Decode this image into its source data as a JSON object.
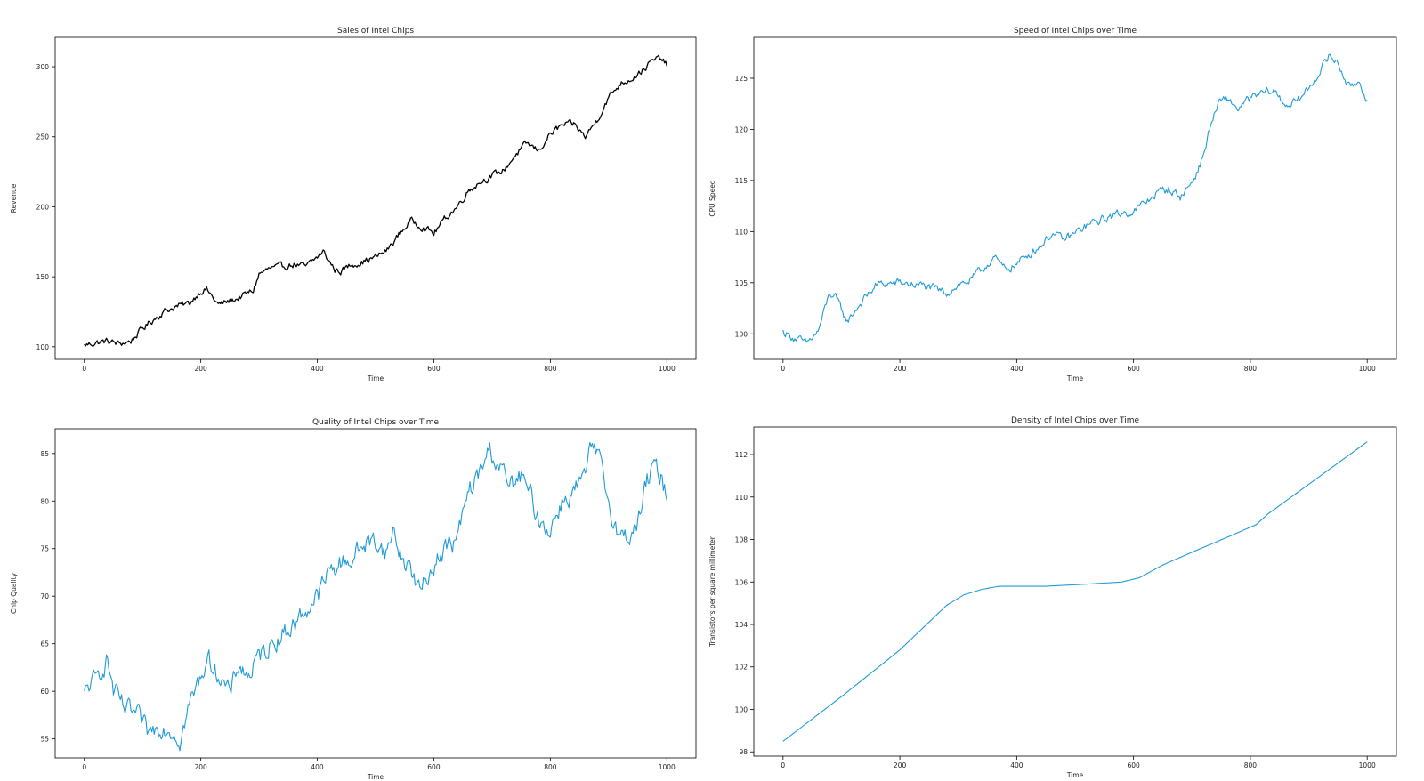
{
  "figure": {
    "background": "#ffffff"
  },
  "chart_data": [
    {
      "type": "line",
      "title": "Sales of Intel Chips",
      "xlabel": "Time",
      "ylabel": "Revenue",
      "xlim": [
        -50,
        1050
      ],
      "ylim": [
        91,
        321
      ],
      "xticks": [
        0,
        200,
        400,
        600,
        800,
        1000
      ],
      "yticks": [
        100,
        150,
        200,
        250,
        300
      ],
      "grid": false,
      "legend": "none",
      "noise": 2.0,
      "series": [
        {
          "color": "#000000",
          "keypoints": [
            [
              0,
              101
            ],
            [
              20,
              103
            ],
            [
              40,
              104
            ],
            [
              60,
              102
            ],
            [
              80,
              104
            ],
            [
              100,
              113
            ],
            [
              120,
              120
            ],
            [
              140,
              126
            ],
            [
              160,
              129
            ],
            [
              180,
              131
            ],
            [
              200,
              140
            ],
            [
              210,
              141
            ],
            [
              230,
              130
            ],
            [
              260,
              134
            ],
            [
              290,
              140
            ],
            [
              300,
              152
            ],
            [
              320,
              156
            ],
            [
              340,
              157
            ],
            [
              360,
              159
            ],
            [
              380,
              157
            ],
            [
              400,
              164
            ],
            [
              410,
              168
            ],
            [
              430,
              155
            ],
            [
              440,
              154
            ],
            [
              460,
              159
            ],
            [
              480,
              161
            ],
            [
              500,
              164
            ],
            [
              520,
              169
            ],
            [
              540,
              180
            ],
            [
              560,
              190
            ],
            [
              580,
              186
            ],
            [
              600,
              181
            ],
            [
              620,
              192
            ],
            [
              640,
              200
            ],
            [
              660,
              212
            ],
            [
              680,
              218
            ],
            [
              700,
              222
            ],
            [
              720,
              226
            ],
            [
              740,
              237
            ],
            [
              760,
              245
            ],
            [
              780,
              240
            ],
            [
              800,
              252
            ],
            [
              820,
              258
            ],
            [
              840,
              259
            ],
            [
              860,
              250
            ],
            [
              880,
              262
            ],
            [
              900,
              278
            ],
            [
              920,
              288
            ],
            [
              940,
              292
            ],
            [
              960,
              298
            ],
            [
              975,
              304
            ],
            [
              990,
              306
            ],
            [
              1000,
              301
            ]
          ]
        }
      ]
    },
    {
      "type": "line",
      "title": "Speed of Intel Chips over Time",
      "xlabel": "Time",
      "ylabel": "CPU Speed",
      "xlim": [
        -50,
        1050
      ],
      "ylim": [
        97.5,
        129
      ],
      "xticks": [
        0,
        200,
        400,
        600,
        800,
        1000
      ],
      "yticks": [
        100,
        105,
        110,
        115,
        120,
        125
      ],
      "grid": false,
      "legend": "none",
      "noise": 0.35,
      "series": [
        {
          "color": "#1f9bd7",
          "keypoints": [
            [
              0,
              100.2
            ],
            [
              20,
              99.6
            ],
            [
              40,
              99.0
            ],
            [
              60,
              100.2
            ],
            [
              80,
              104.0
            ],
            [
              90,
              103.5
            ],
            [
              110,
              101.2
            ],
            [
              130,
              102.8
            ],
            [
              160,
              104.8
            ],
            [
              200,
              105.0
            ],
            [
              240,
              104.7
            ],
            [
              280,
              104.0
            ],
            [
              300,
              104.8
            ],
            [
              320,
              105.2
            ],
            [
              340,
              106.2
            ],
            [
              360,
              107.5
            ],
            [
              380,
              106.3
            ],
            [
              400,
              106.8
            ],
            [
              420,
              107.8
            ],
            [
              440,
              108.6
            ],
            [
              460,
              109.8
            ],
            [
              480,
              109.2
            ],
            [
              500,
              109.8
            ],
            [
              520,
              110.6
            ],
            [
              540,
              111.0
            ],
            [
              560,
              111.5
            ],
            [
              580,
              111.8
            ],
            [
              600,
              112.0
            ],
            [
              620,
              112.8
            ],
            [
              640,
              113.8
            ],
            [
              660,
              114.2
            ],
            [
              680,
              113.4
            ],
            [
              700,
              114.8
            ],
            [
              710,
              116.0
            ],
            [
              720,
              117.5
            ],
            [
              730,
              120.0
            ],
            [
              745,
              122.5
            ],
            [
              760,
              123.0
            ],
            [
              780,
              122.0
            ],
            [
              800,
              123.0
            ],
            [
              820,
              123.5
            ],
            [
              840,
              123.8
            ],
            [
              860,
              122.4
            ],
            [
              880,
              122.7
            ],
            [
              900,
              124.0
            ],
            [
              920,
              125.8
            ],
            [
              935,
              127.2
            ],
            [
              950,
              126.5
            ],
            [
              970,
              124.0
            ],
            [
              985,
              124.8
            ],
            [
              1000,
              123.0
            ]
          ]
        }
      ]
    },
    {
      "type": "line",
      "title": "Quality of Intel Chips over Time",
      "xlabel": "Time",
      "ylabel": "Chip Quality",
      "xlim": [
        -50,
        1050
      ],
      "ylim": [
        53,
        87.6
      ],
      "xticks": [
        0,
        200,
        400,
        600,
        800,
        1000
      ],
      "yticks": [
        55,
        60,
        65,
        70,
        75,
        80,
        85
      ],
      "grid": false,
      "legend": "none",
      "noise": 0.9,
      "series": [
        {
          "color": "#1f9bd7",
          "keypoints": [
            [
              0,
              59.5
            ],
            [
              10,
              60.8
            ],
            [
              20,
              61.0
            ],
            [
              30,
              62.5
            ],
            [
              40,
              63.3
            ],
            [
              50,
              60.0
            ],
            [
              70,
              58.0
            ],
            [
              90,
              57.5
            ],
            [
              110,
              55.5
            ],
            [
              130,
              56.5
            ],
            [
              150,
              56.0
            ],
            [
              165,
              55.0
            ],
            [
              180,
              58.5
            ],
            [
              200,
              61.5
            ],
            [
              210,
              63.5
            ],
            [
              230,
              62.0
            ],
            [
              250,
              59.5
            ],
            [
              265,
              63.0
            ],
            [
              280,
              61.5
            ],
            [
              300,
              63.5
            ],
            [
              320,
              65.0
            ],
            [
              340,
              66.0
            ],
            [
              360,
              67.0
            ],
            [
              380,
              68.5
            ],
            [
              400,
              70.0
            ],
            [
              420,
              72.5
            ],
            [
              440,
              73.5
            ],
            [
              460,
              74.0
            ],
            [
              480,
              75.5
            ],
            [
              500,
              75.8
            ],
            [
              520,
              74.5
            ],
            [
              530,
              77.0
            ],
            [
              545,
              74.0
            ],
            [
              560,
              73.0
            ],
            [
              575,
              70.5
            ],
            [
              590,
              72.0
            ],
            [
              600,
              73.5
            ],
            [
              620,
              75.0
            ],
            [
              640,
              76.0
            ],
            [
              660,
              81.0
            ],
            [
              680,
              83.0
            ],
            [
              695,
              85.5
            ],
            [
              710,
              84.0
            ],
            [
              730,
              81.5
            ],
            [
              750,
              82.5
            ],
            [
              770,
              80.0
            ],
            [
              780,
              78.0
            ],
            [
              800,
              77.0
            ],
            [
              820,
              80.0
            ],
            [
              840,
              81.0
            ],
            [
              860,
              82.5
            ],
            [
              872,
              86.0
            ],
            [
              885,
              84.0
            ],
            [
              900,
              80.0
            ],
            [
              920,
              76.0
            ],
            [
              935,
              76.5
            ],
            [
              950,
              77.5
            ],
            [
              965,
              82.0
            ],
            [
              980,
              83.5
            ],
            [
              990,
              82.5
            ],
            [
              1000,
              80.5
            ]
          ]
        }
      ]
    },
    {
      "type": "line",
      "title": "Density of Intel Chips over Time",
      "xlabel": "Time",
      "ylabel": "Transistors per square millimeter",
      "xlim": [
        -50,
        1050
      ],
      "ylim": [
        97.8,
        113.3
      ],
      "xticks": [
        0,
        200,
        400,
        600,
        800,
        1000
      ],
      "yticks": [
        98,
        100,
        102,
        104,
        106,
        108,
        110,
        112
      ],
      "grid": false,
      "legend": "none",
      "noise": 0,
      "series": [
        {
          "color": "#1f9bd7",
          "keypoints": [
            [
              0,
              98.5
            ],
            [
              100,
              100.6
            ],
            [
              200,
              102.8
            ],
            [
              280,
              104.9
            ],
            [
              310,
              105.4
            ],
            [
              340,
              105.65
            ],
            [
              370,
              105.8
            ],
            [
              450,
              105.8
            ],
            [
              520,
              105.9
            ],
            [
              580,
              106.0
            ],
            [
              610,
              106.2
            ],
            [
              650,
              106.8
            ],
            [
              700,
              107.4
            ],
            [
              760,
              108.1
            ],
            [
              810,
              108.7
            ],
            [
              830,
              109.2
            ],
            [
              870,
              110.0
            ],
            [
              930,
              111.2
            ],
            [
              1000,
              112.6
            ]
          ]
        }
      ]
    }
  ]
}
